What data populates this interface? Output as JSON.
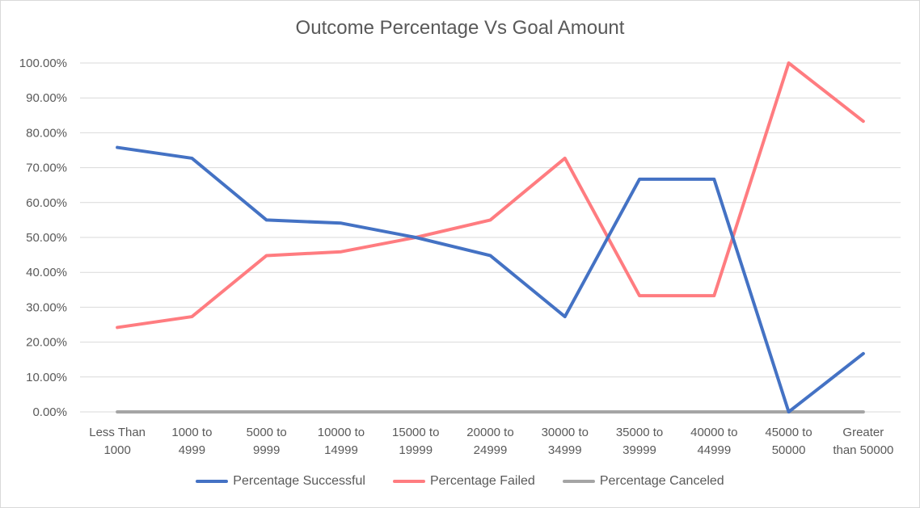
{
  "chart_data": {
    "type": "line",
    "title": "Outcome Percentage Vs Goal Amount",
    "xlabel": "",
    "ylabel": "",
    "categories": [
      [
        "Less Than",
        "1000"
      ],
      [
        "1000 to",
        "4999"
      ],
      [
        "5000 to",
        "9999"
      ],
      [
        "10000 to",
        "14999"
      ],
      [
        "15000 to",
        "19999"
      ],
      [
        "20000 to",
        "24999"
      ],
      [
        "30000 to",
        "34999"
      ],
      [
        "35000 to",
        "39999"
      ],
      [
        "40000 to",
        "44999"
      ],
      [
        "45000 to",
        "50000"
      ],
      [
        "Greater",
        "than 50000"
      ]
    ],
    "y_ticks": [
      "0.00%",
      "10.00%",
      "20.00%",
      "30.00%",
      "40.00%",
      "50.00%",
      "60.00%",
      "70.00%",
      "80.00%",
      "90.00%",
      "100.00%"
    ],
    "ylim": [
      0,
      100
    ],
    "grid": true,
    "legend_position": "bottom",
    "series": [
      {
        "name": "Percentage Successful",
        "color": "#4472c4",
        "values": [
          75.8,
          72.7,
          55.0,
          54.1,
          50.0,
          44.8,
          27.3,
          66.7,
          66.7,
          0.0,
          16.7
        ]
      },
      {
        "name": "Percentage Failed",
        "color": "#ff7c80",
        "values": [
          24.2,
          27.3,
          44.8,
          45.9,
          50.0,
          55.0,
          72.7,
          33.3,
          33.3,
          100.0,
          83.3
        ]
      },
      {
        "name": "Percentage Canceled",
        "color": "#a5a5a5",
        "values": [
          0,
          0,
          0,
          0,
          0,
          0,
          0,
          0,
          0,
          0,
          0
        ]
      }
    ]
  }
}
